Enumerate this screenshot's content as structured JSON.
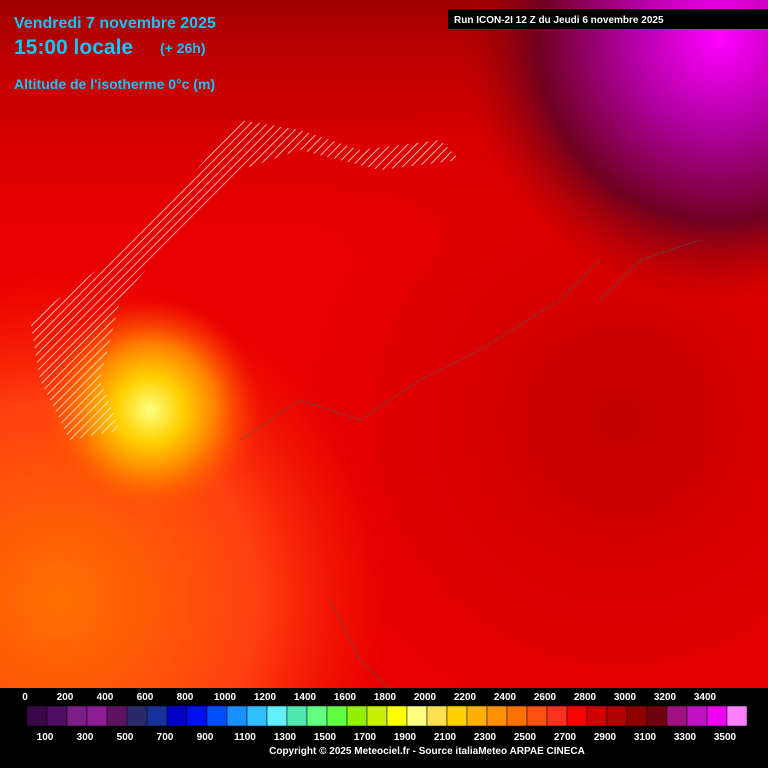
{
  "header": {
    "date": "Vendredi 7 novembre 2025",
    "time": "15:00 locale",
    "offset": "(+ 26h)",
    "parameter": "Altitude de l'isotherme 0°c (m)"
  },
  "run": "Run ICON-2I 12 Z du Jeudi 6 novembre 2025",
  "legend": {
    "top_labels": [
      0,
      200,
      400,
      600,
      800,
      1000,
      1200,
      1400,
      1600,
      1800,
      2000,
      2200,
      2400,
      2600,
      2800,
      3000,
      3200,
      3400
    ],
    "bottom_labels": [
      100,
      300,
      500,
      700,
      900,
      1100,
      1300,
      1500,
      1700,
      1900,
      2100,
      2300,
      2500,
      2700,
      2900,
      3100,
      3300,
      3500
    ],
    "colors": [
      "#3a0848",
      "#4e0e62",
      "#7c1c86",
      "#8e1e96",
      "#5e1262",
      "#2a2a6a",
      "#18309a",
      "#0000c8",
      "#0010f0",
      "#0050ff",
      "#1890ff",
      "#30c0ff",
      "#60f0ff",
      "#50e8b0",
      "#60ff80",
      "#60ff40",
      "#90f000",
      "#c8f000",
      "#ffff00",
      "#ffff80",
      "#ffe050",
      "#ffd000",
      "#ffb000",
      "#ff9000",
      "#ff7000",
      "#ff5010",
      "#ff3020",
      "#ff0000",
      "#d00000",
      "#b00000",
      "#900000",
      "#700010",
      "#a01080",
      "#c010c0",
      "#f000f0",
      "#ff80ff"
    ]
  },
  "copyright": "Copyright © 2025 Meteociel.fr - Source italiaMeteo ARPAE CINECA"
}
